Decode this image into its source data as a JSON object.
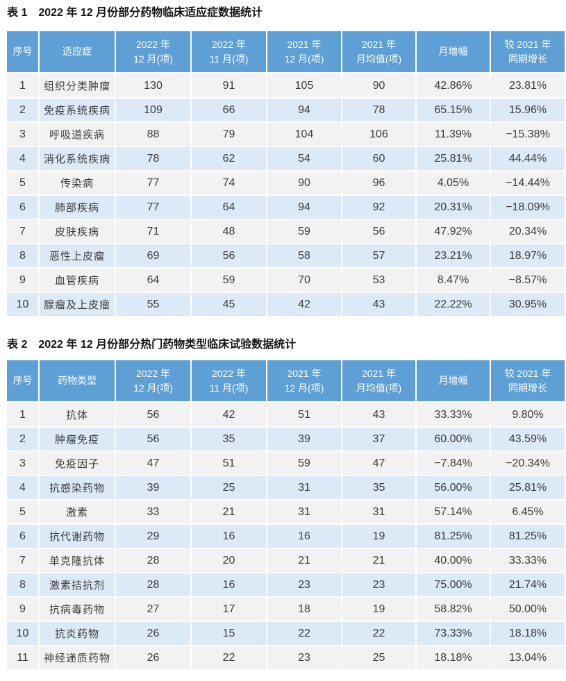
{
  "colors": {
    "header_bg": "#5E9FD6",
    "header_text": "#FFFFFF",
    "row_odd_bg": "#F2F2F2",
    "row_even_bg": "#DCE9F6",
    "cell_text": "#3C3C3C",
    "title_text": "#141414"
  },
  "tables": [
    {
      "label": "表 1",
      "title": "2022 年 12 月份部分药物临床适应症数据统计",
      "columns": [
        {
          "lines": [
            "序号"
          ]
        },
        {
          "lines": [
            "适应症"
          ]
        },
        {
          "lines": [
            "2022 年",
            "12 月(项)"
          ]
        },
        {
          "lines": [
            "2022 年",
            "11 月(项)"
          ]
        },
        {
          "lines": [
            "2021 年",
            "12 月(项)"
          ]
        },
        {
          "lines": [
            "2021 年",
            "月均值(项)"
          ]
        },
        {
          "lines": [
            "月增幅"
          ]
        },
        {
          "lines": [
            "较 2021 年",
            "同期增长"
          ]
        }
      ],
      "rows": [
        [
          "1",
          "组织分类肿瘤",
          "130",
          "91",
          "105",
          "90",
          "42.86%",
          "23.81%"
        ],
        [
          "2",
          "免疫系统疾病",
          "109",
          "66",
          "94",
          "78",
          "65.15%",
          "15.96%"
        ],
        [
          "3",
          "呼吸道疾病",
          "88",
          "79",
          "104",
          "106",
          "11.39%",
          "−15.38%"
        ],
        [
          "4",
          "消化系统疾病",
          "78",
          "62",
          "54",
          "60",
          "25.81%",
          "44.44%"
        ],
        [
          "5",
          "传染病",
          "77",
          "74",
          "90",
          "96",
          "4.05%",
          "−14.44%"
        ],
        [
          "6",
          "肺部疾病",
          "77",
          "64",
          "94",
          "92",
          "20.31%",
          "−18.09%"
        ],
        [
          "7",
          "皮肤疾病",
          "71",
          "48",
          "59",
          "56",
          "47.92%",
          "20.34%"
        ],
        [
          "8",
          "恶性上皮瘤",
          "69",
          "56",
          "58",
          "57",
          "23.21%",
          "18.97%"
        ],
        [
          "9",
          "血管疾病",
          "64",
          "59",
          "70",
          "53",
          "8.47%",
          "−8.57%"
        ],
        [
          "10",
          "腺瘤及上皮瘤",
          "55",
          "45",
          "42",
          "43",
          "22.22%",
          "30.95%"
        ]
      ]
    },
    {
      "label": "表 2",
      "title": "2022 年 12 月份部分热门药物类型临床试验数据统计",
      "columns": [
        {
          "lines": [
            "序号"
          ]
        },
        {
          "lines": [
            "药物类型"
          ]
        },
        {
          "lines": [
            "2022 年",
            "12 月(项)"
          ]
        },
        {
          "lines": [
            "2022 年",
            "11 月(项)"
          ]
        },
        {
          "lines": [
            "2021 年",
            "12 月(项)"
          ]
        },
        {
          "lines": [
            "2021 年",
            "月均值(项)"
          ]
        },
        {
          "lines": [
            "月增幅"
          ]
        },
        {
          "lines": [
            "较 2021 年",
            "同期增长"
          ]
        }
      ],
      "rows": [
        [
          "1",
          "抗体",
          "56",
          "42",
          "51",
          "43",
          "33.33%",
          "9.80%"
        ],
        [
          "2",
          "肿瘤免疫",
          "56",
          "35",
          "39",
          "37",
          "60.00%",
          "43.59%"
        ],
        [
          "3",
          "免疫因子",
          "47",
          "51",
          "59",
          "47",
          "−7.84%",
          "−20.34%"
        ],
        [
          "4",
          "抗感染药物",
          "39",
          "25",
          "31",
          "35",
          "56.00%",
          "25.81%"
        ],
        [
          "5",
          "激素",
          "33",
          "21",
          "31",
          "31",
          "57.14%",
          "6.45%"
        ],
        [
          "6",
          "抗代谢药物",
          "29",
          "16",
          "16",
          "19",
          "81.25%",
          "81.25%"
        ],
        [
          "7",
          "单克隆抗体",
          "28",
          "20",
          "21",
          "21",
          "40.00%",
          "33.33%"
        ],
        [
          "8",
          "激素拮抗剂",
          "28",
          "16",
          "23",
          "23",
          "75.00%",
          "21.74%"
        ],
        [
          "9",
          "抗病毒药物",
          "27",
          "17",
          "18",
          "19",
          "58.82%",
          "50.00%"
        ],
        [
          "10",
          "抗炎药物",
          "26",
          "15",
          "22",
          "22",
          "73.33%",
          "18.18%"
        ],
        [
          "11",
          "神经递质药物",
          "26",
          "22",
          "23",
          "25",
          "18.18%",
          "13.04%"
        ]
      ]
    }
  ]
}
